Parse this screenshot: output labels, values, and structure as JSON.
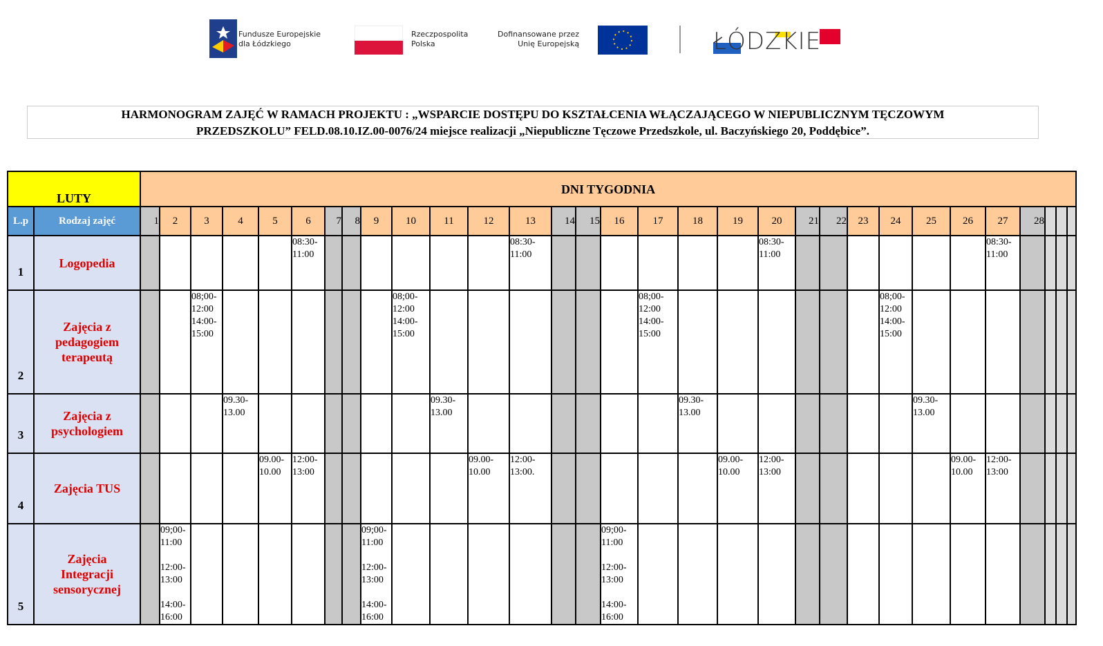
{
  "logos": {
    "fe_text": "Fundusze Europejskie\ndla Łódzkiego",
    "rp_text": "Rzeczpospolita\nPolska",
    "eu_text": "Dofinansowane przez\nUnię Europejską",
    "lodzkie_text": "ŁÓDZKIE",
    "colors": {
      "eu_blue": "#003399",
      "eu_star": "#ffcc00",
      "pl_red": "#dc143c"
    }
  },
  "title": {
    "line1": "HARMONOGRAM ZAJĘĆ W RAMACH PROJEKTU : „WSPARCIE DOSTĘPU DO KSZTAŁCENIA WŁĄCZAJĄCEGO W NIEPUBLICZNYM TĘCZOWYM",
    "line2": "PRZEDSZKOLU” FELD.08.10.IZ.00-0076/24  miejsce  realizacji  „Niepubliczne Tęczowe Przedszkole, ul. Baczyńskiego 20, Poddębice”."
  },
  "table": {
    "month": "LUTY",
    "days_header": "DNI TYGODNIA",
    "col_lp": "L.p",
    "col_type": "Rodzaj zajęć",
    "days": [
      "1",
      "2",
      "3",
      "4",
      "5",
      "6",
      "7",
      "8",
      "9",
      "10",
      "11",
      "12",
      "13",
      "14",
      "15",
      "16",
      "17",
      "18",
      "19",
      "20",
      "21",
      "22",
      "23",
      "24",
      "25",
      "26",
      "27",
      "28"
    ],
    "weekend_days": [
      "1",
      "7",
      "8",
      "14",
      "15",
      "21",
      "22",
      "28"
    ],
    "extra_blank_columns": 3,
    "colors": {
      "month": "#ffff00",
      "days": "#ffcc99",
      "weekend": "#c8c8c8",
      "header_blue": "#5b9bd5",
      "row_label": "#d9e1f2",
      "activity_text": "#e00000"
    },
    "rows": [
      {
        "lp": "1",
        "name": "Logopedia",
        "entries": {
          "6": "08:30-\n11:00",
          "13": "08:30-\n11:00",
          "20": "08:30-\n11:00",
          "27": "08:30-\n11:00"
        }
      },
      {
        "lp": "2",
        "name": "Zajęcia z pedagogiem terapeutą",
        "entries": {
          "3": "08;00-\n12:00\n14:00-\n15:00",
          "10": "08;00-\n12:00\n14:00-\n15:00",
          "17": "08;00-\n12:00\n14:00-\n15:00",
          "24": "08;00-\n12:00\n14:00-\n15:00"
        }
      },
      {
        "lp": "3",
        "name": "Zajęcia z psychologiem",
        "entries": {
          "4": "09.30-\n13.00",
          "11": "09.30-\n13.00",
          "18": "09.30-\n13.00",
          "25": "09.30-\n13.00"
        }
      },
      {
        "lp": "4",
        "name": "Zajęcia  TUS",
        "entries": {
          "5": "09.00-\n10.00",
          "6": "12:00-\n13:00",
          "12": "09.00-\n10.00",
          "13": "12:00-\n13:00.",
          "19": "09.00-\n10.00",
          "20": "12:00-\n13:00",
          "26": "09.00-\n10.00",
          "27": "12:00-\n13:00"
        }
      },
      {
        "lp": "5",
        "name": "Zajęcia Integracji sensorycznej",
        "entries": {
          "2": "09;00-\n11:00\n\n12:00-\n13:00\n\n14:00-\n16:00",
          "9": "09;00-\n11:00\n\n12:00-\n13:00\n\n14:00-\n16:00",
          "16": "09;00-\n11:00\n\n12:00-\n13:00\n\n14:00-\n16:00"
        }
      }
    ]
  }
}
